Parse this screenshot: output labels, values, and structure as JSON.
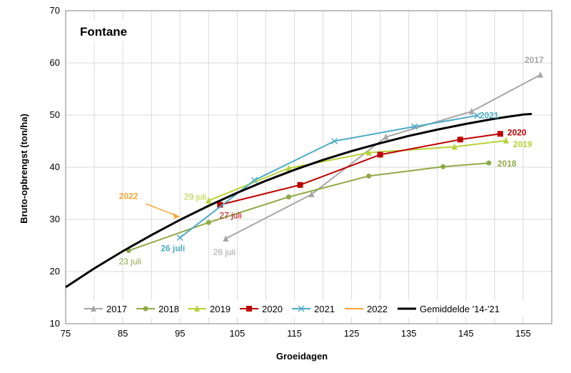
{
  "chart_data": {
    "type": "line",
    "title": "Fontane",
    "xlabel": "Groeidagen",
    "ylabel": "Bruto-opbrengst (ton/ha)",
    "xlim": [
      75,
      160
    ],
    "ylim": [
      10,
      70
    ],
    "xticks": [
      75,
      85,
      95,
      105,
      115,
      125,
      135,
      145,
      155
    ],
    "yticks": [
      10,
      20,
      30,
      40,
      50,
      60,
      70
    ],
    "grid": true,
    "legend_position": "bottom",
    "series": [
      {
        "name": "2017",
        "color": "#a6a6a6",
        "marker": "triangle",
        "label": "2017",
        "start_label": "26 juli",
        "points": [
          [
            103,
            26.3
          ],
          [
            118,
            34.8
          ],
          [
            131,
            45.8
          ],
          [
            146,
            50.7
          ],
          [
            158,
            57.7
          ]
        ]
      },
      {
        "name": "2018",
        "color": "#8faa45",
        "marker": "circle",
        "label": "2018",
        "start_label": "23 juli",
        "points": [
          [
            86,
            24.0
          ],
          [
            100,
            29.4
          ],
          [
            114,
            34.3
          ],
          [
            128,
            38.3
          ],
          [
            141,
            40.1
          ],
          [
            149,
            40.8
          ]
        ]
      },
      {
        "name": "2019",
        "color": "#b4d335",
        "marker": "triangle",
        "label": "2019",
        "start_label": "29 juli",
        "points": [
          [
            100,
            33.6
          ],
          [
            114,
            39.8
          ],
          [
            128,
            42.8
          ],
          [
            143,
            43.9
          ],
          [
            152,
            45.1
          ]
        ]
      },
      {
        "name": "2020",
        "color": "#c00000",
        "marker": "square",
        "label": "2020",
        "start_label": "27 juli",
        "points": [
          [
            102,
            32.8
          ],
          [
            116,
            36.6
          ],
          [
            130,
            42.4
          ],
          [
            144,
            45.3
          ],
          [
            151,
            46.4
          ]
        ]
      },
      {
        "name": "2021",
        "color": "#4bacc6",
        "marker": "x",
        "label": "2021",
        "start_label": "26 juli",
        "points": [
          [
            95,
            26.5
          ],
          [
            108,
            37.5
          ],
          [
            122,
            45.0
          ],
          [
            136,
            47.8
          ],
          [
            147,
            49.9
          ]
        ]
      },
      {
        "name": "2022",
        "color": "#f7a531",
        "marker": "none",
        "label": "2022",
        "points": [
          [
            95,
            30.8
          ]
        ]
      },
      {
        "name": "Gemiddelde '14-'21",
        "color": "#000000",
        "marker": "none",
        "average": true,
        "points": [
          [
            75,
            17.0
          ],
          [
            80,
            20.6
          ],
          [
            85,
            23.9
          ],
          [
            90,
            27.0
          ],
          [
            95,
            29.9
          ],
          [
            100,
            32.6
          ],
          [
            105,
            35.1
          ],
          [
            110,
            37.4
          ],
          [
            115,
            39.5
          ],
          [
            120,
            41.4
          ],
          [
            125,
            43.1
          ],
          [
            130,
            44.6
          ],
          [
            135,
            46.0
          ],
          [
            140,
            47.2
          ],
          [
            145,
            48.3
          ],
          [
            150,
            49.3
          ],
          [
            155,
            50.1
          ],
          [
            156.5,
            50.2
          ]
        ]
      }
    ]
  }
}
